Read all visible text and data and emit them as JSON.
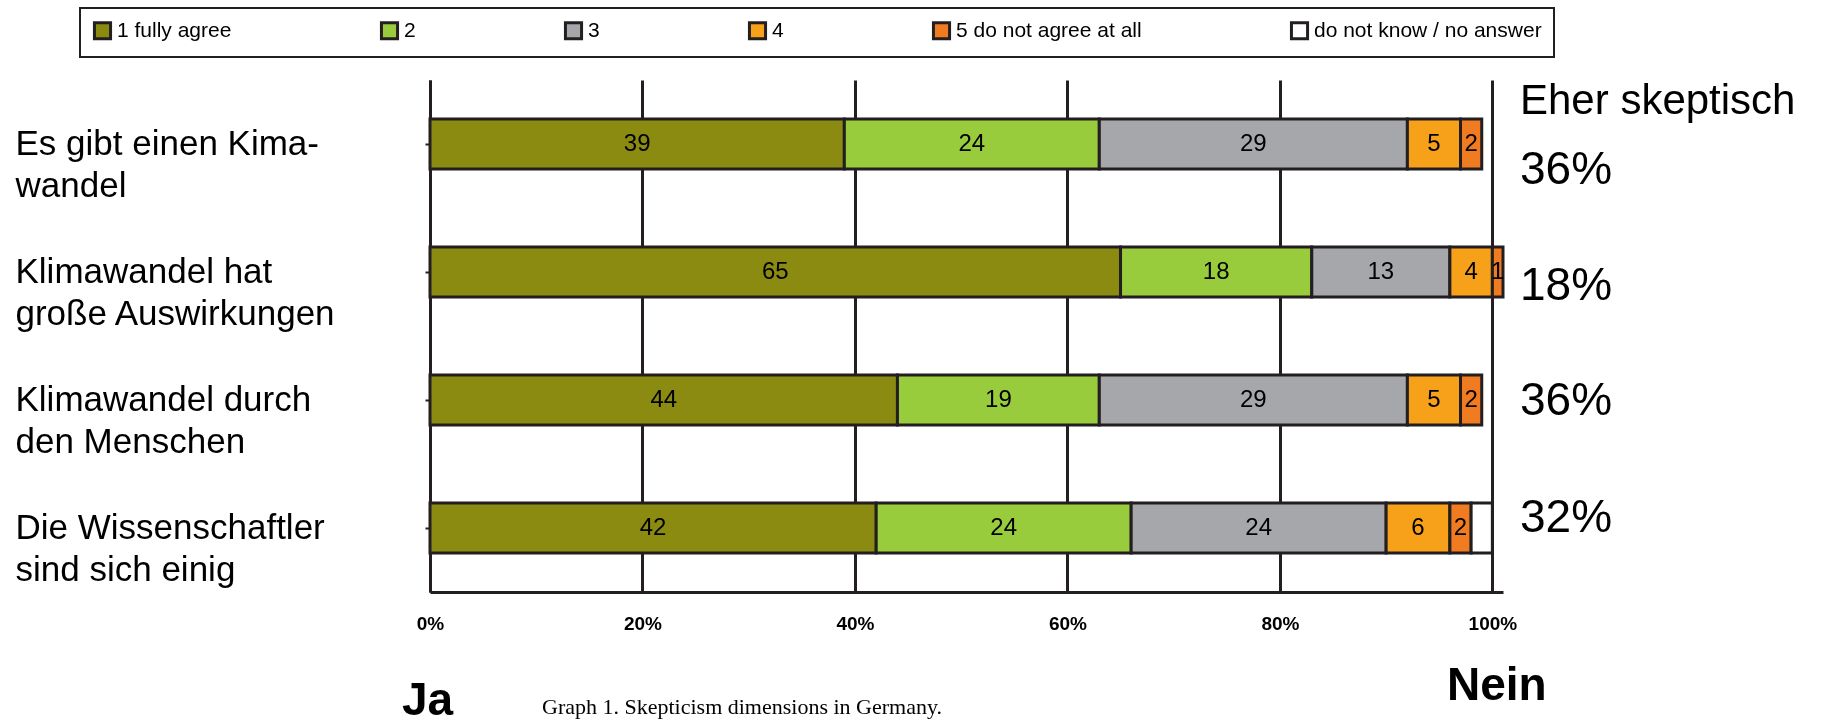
{
  "chart_data": {
    "type": "bar",
    "orientation": "horizontal",
    "stacked": true,
    "data_labels": true,
    "legend": "top",
    "grid": "x",
    "categories": [
      "Es gibt einen Kima-\nwandel",
      "Klimawandel hat\ngroße Auswirkungen",
      "Klimawandel durch\nden Menschen",
      "Die Wissenschaftler\nsind sich einig"
    ],
    "series": [
      {
        "name": "1 fully agree",
        "color": "#8b8b12",
        "values": [
          39,
          65,
          44,
          42
        ]
      },
      {
        "name": "2",
        "color": "#99cc3d",
        "values": [
          24,
          18,
          19,
          24
        ]
      },
      {
        "name": "3",
        "color": "#a6a7ab",
        "values": [
          29,
          13,
          29,
          24
        ]
      },
      {
        "name": "4",
        "color": "#f7a11a",
        "values": [
          5,
          4,
          5,
          6
        ]
      },
      {
        "name": "5 do not agree at all",
        "color": "#f07b20",
        "values": [
          2,
          1,
          2,
          2
        ]
      },
      {
        "name": "do not know / no answer",
        "color": "#ffffff",
        "values": [
          null,
          null,
          null,
          2
        ],
        "value_labels": [
          null,
          null,
          null,
          null
        ]
      }
    ],
    "xlim": [
      0,
      101
    ],
    "xticks": [
      {
        "value": 0,
        "label": "0%"
      },
      {
        "value": 20,
        "label": "20%"
      },
      {
        "value": 40,
        "label": "40%"
      },
      {
        "value": 60,
        "label": "60%"
      },
      {
        "value": 80,
        "label": "80%"
      },
      {
        "value": 100,
        "label": "100%"
      }
    ],
    "annotations": [
      "Eher skeptisch",
      "36%",
      "18%",
      "36%",
      "32%",
      "Ja",
      "Nein",
      "Graph 1. Skepticism dimensions in Germany."
    ]
  }
}
